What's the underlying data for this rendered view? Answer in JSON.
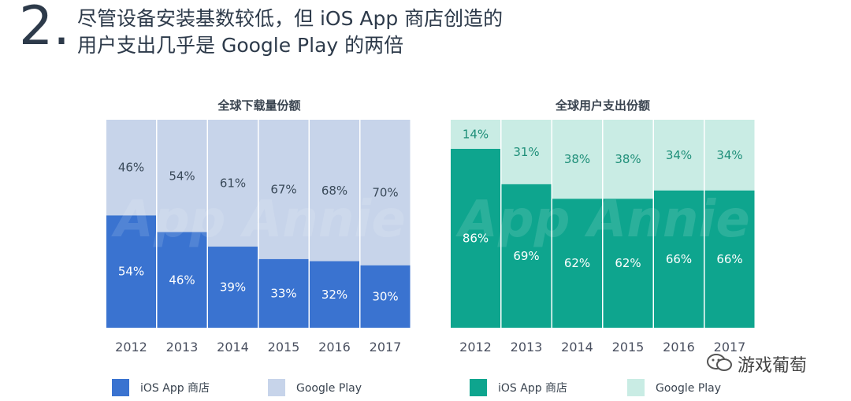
{
  "title": {
    "number": "2.",
    "line1": "尽管设备安装基数较低，但 iOS App 商店创造的",
    "line2": "用户支出几乎是 Google Play 的两倍"
  },
  "colors": {
    "ios_download": "#3a73d0",
    "gp_download": "#c7d4ea",
    "ios_spend": "#0ea58e",
    "gp_spend": "#c9ece4",
    "spend_gp_label": "#1f8f79"
  },
  "watermark_brand": "App Annie",
  "watermark_account": "游戏葡萄",
  "chart_data": [
    {
      "type": "bar",
      "stacked": true,
      "title": "全球下载量份额",
      "categories": [
        "2012",
        "2013",
        "2014",
        "2015",
        "2016",
        "2017"
      ],
      "ylim": [
        0,
        100
      ],
      "series": [
        {
          "name": "iOS App 商店",
          "values": [
            54,
            46,
            39,
            33,
            32,
            30
          ],
          "color": "#3a73d0"
        },
        {
          "name": "Google Play",
          "values": [
            46,
            54,
            61,
            67,
            68,
            70
          ],
          "color": "#c7d4ea"
        }
      ],
      "legend": "bottom"
    },
    {
      "type": "bar",
      "stacked": true,
      "title": "全球用户支出份额",
      "categories": [
        "2012",
        "2013",
        "2014",
        "2015",
        "2016",
        "2017"
      ],
      "ylim": [
        0,
        100
      ],
      "series": [
        {
          "name": "iOS App 商店",
          "values": [
            86,
            69,
            62,
            62,
            66,
            66
          ],
          "color": "#0ea58e"
        },
        {
          "name": "Google Play",
          "values": [
            14,
            31,
            38,
            38,
            34,
            34
          ],
          "color": "#c9ece4"
        }
      ],
      "legend": "bottom"
    }
  ]
}
